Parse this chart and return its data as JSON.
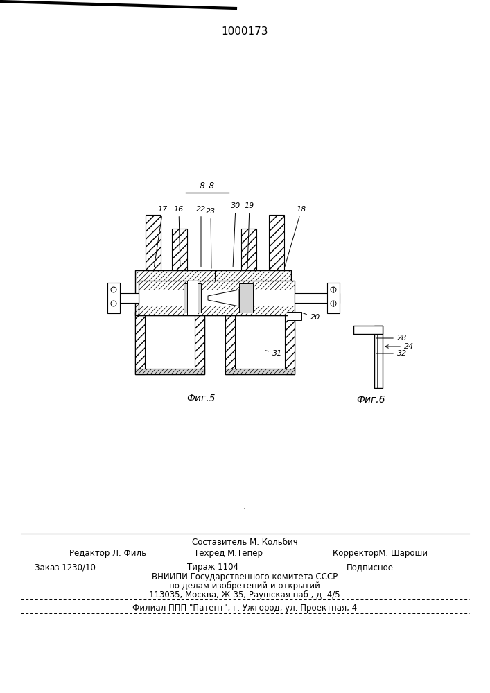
{
  "patent_number": "1000173",
  "background_color": "#ffffff",
  "fig5_label": "Фиг.5",
  "fig6_label": "Фиг.6",
  "footer_line1": "Составитель М. Кольбич",
  "footer_line2a": "Редактор Л. Филь",
  "footer_line2b": "Техред М.Тепер",
  "footer_line2c": "КорректорМ. Шароши",
  "footer_line3a": "Заказ 1230/10",
  "footer_line3b": "Тираж 1104",
  "footer_line3c": "Подписное",
  "footer_line4": "ВНИИПИ Государственного комитета СССР",
  "footer_line5": "по делам изобретений и открытий",
  "footer_line6": "113035, Москва, Ж-35, Раушская наб., д. 4/5",
  "footer_line7": "Филиал ППП \"Патент\", г. Ужгород, ул. Проектная, 4"
}
